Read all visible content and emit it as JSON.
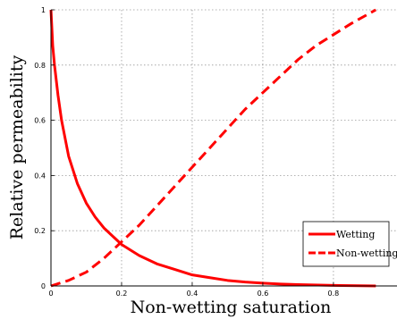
{
  "chart_data": {
    "type": "line",
    "title": "",
    "xlabel": "Non-wetting saturation",
    "ylabel": "Relative permeability",
    "xlim": [
      0,
      0.98
    ],
    "ylim": [
      0,
      1
    ],
    "x_ticks": [
      "0",
      "0.2",
      "0.4",
      "0.6",
      "0.8"
    ],
    "y_ticks": [
      "0",
      "0.2",
      "0.4",
      "0.6",
      "0.8",
      "1"
    ],
    "grid": true,
    "legend_position": "bottom-right",
    "series": [
      {
        "name": "Wetting",
        "style": "solid",
        "color": "#ff0000",
        "x": [
          0,
          0.005,
          0.01,
          0.02,
          0.03,
          0.05,
          0.075,
          0.1,
          0.125,
          0.15,
          0.2,
          0.25,
          0.3,
          0.35,
          0.4,
          0.45,
          0.5,
          0.55,
          0.6,
          0.65,
          0.7,
          0.8,
          0.92
        ],
        "y": [
          1.0,
          0.87,
          0.8,
          0.69,
          0.6,
          0.47,
          0.37,
          0.3,
          0.25,
          0.21,
          0.15,
          0.11,
          0.08,
          0.06,
          0.04,
          0.03,
          0.02,
          0.014,
          0.01,
          0.007,
          0.005,
          0.002,
          0.0
        ]
      },
      {
        "name": "Non-wetting",
        "style": "dashed",
        "color": "#ff0000",
        "x": [
          0,
          0.05,
          0.1,
          0.15,
          0.2,
          0.25,
          0.3,
          0.35,
          0.4,
          0.45,
          0.5,
          0.55,
          0.6,
          0.65,
          0.7,
          0.75,
          0.8,
          0.85,
          0.92
        ],
        "y": [
          0.0,
          0.02,
          0.05,
          0.1,
          0.16,
          0.22,
          0.29,
          0.36,
          0.43,
          0.5,
          0.57,
          0.64,
          0.7,
          0.76,
          0.82,
          0.87,
          0.91,
          0.95,
          1.0
        ]
      }
    ]
  }
}
